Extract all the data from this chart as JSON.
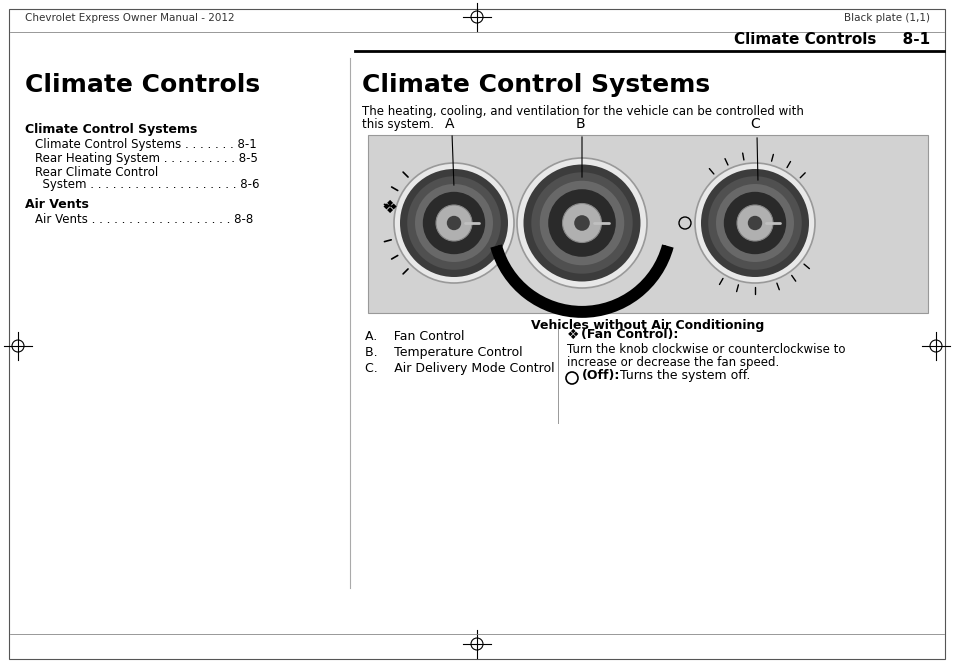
{
  "bg_color": "#ffffff",
  "header_left": "Chevrolet Express Owner Manual - 2012",
  "header_right": "Black plate (1,1)",
  "section_title": "Climate Controls     8-1",
  "left_heading": "Climate Controls",
  "right_heading": "Climate Control Systems",
  "right_intro_line1": "The heating, cooling, and ventilation for the vehicle can be controlled with",
  "right_intro_line2": "this system.",
  "toc_heading1": "Climate Control Systems",
  "toc_item1": "Climate Control Systems . . . . . . . 8-1",
  "toc_item2": "Rear Heating System . . . . . . . . . . 8-5",
  "toc_item3": "Rear Climate Control",
  "toc_item4": "  System . . . . . . . . . . . . . . . . . . . . 8-6",
  "toc_heading2": "Air Vents",
  "toc_item5": "Air Vents . . . . . . . . . . . . . . . . . . . 8-8",
  "diagram_caption": "Vehicles without Air Conditioning",
  "list_a": "A.  Fan Control",
  "list_b": "B.  Temperature Control",
  "list_c": "C.  Air Delivery Mode Control",
  "note1_bold": "ß (Fan Control):",
  "note1_rest": "  Turn the knob clockwise or counterclockwise to increase or decrease the fan speed.",
  "note2_bold": "(Off):",
  "note2_rest": "  Turns the system off.",
  "knob_bg": "#c8c8c8",
  "knob_outer_white": "#f0f0f0",
  "knob_dark1": "#3a3a3a",
  "knob_dark2": "#555555",
  "knob_mid": "#777777",
  "knob_center_light": "#aaaaaa",
  "knob_center_dark": "#444444"
}
